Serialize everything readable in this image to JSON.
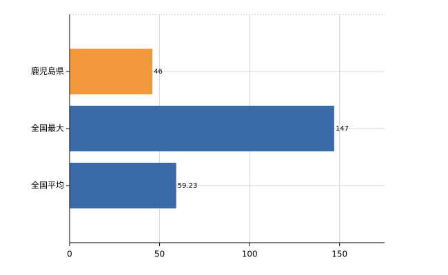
{
  "chart_data": {
    "type": "barh",
    "categories": [
      "鹿児島県",
      "全国最大",
      "全国平均"
    ],
    "values": [
      46,
      147,
      59.23
    ],
    "colors": [
      "#f0983a",
      "#3b6aa8"
    ],
    "series_colors": [
      "#f0983a",
      "#3b6aa8",
      "#3b6aa8"
    ],
    "xlim": [
      0,
      175
    ],
    "xticks": [
      0,
      50,
      100,
      150
    ],
    "grid": true
  }
}
